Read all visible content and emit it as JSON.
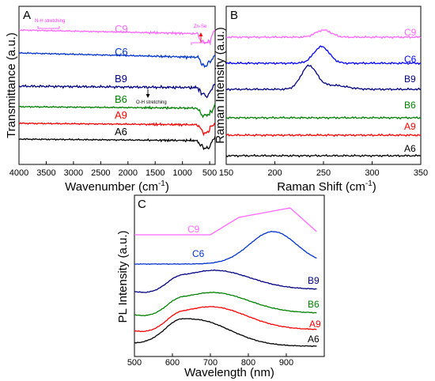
{
  "chart_data": [
    {
      "panel": "A",
      "type": "line",
      "xlabel": "Wavenumber (cm",
      "xlabel_sup": "-1",
      "xlabel_tail": ")",
      "ylabel": "Transmittance (a.u.)",
      "xlim": [
        4000,
        400
      ],
      "x_ticks": [
        4000,
        3500,
        3000,
        2500,
        2000,
        1500,
        1000,
        500
      ],
      "y_ticks": false,
      "annotations": [
        {
          "text": "N-H stretching",
          "x": 3450,
          "color": "#ff33ff"
        },
        {
          "text": "O-H stretching",
          "x": 1350,
          "color": "#000000"
        },
        {
          "text": "Zn-Se",
          "x": 520,
          "color": "#ff33ff"
        }
      ],
      "series": [
        {
          "name": "C9",
          "color": "#ff66ff",
          "level": 7.6
        },
        {
          "name": "C6",
          "color": "#0033cc",
          "level": 6.3
        },
        {
          "name": "B9",
          "color": "#000080",
          "level": 4.7
        },
        {
          "name": "B6",
          "color": "#008000",
          "level": 3.4
        },
        {
          "name": "A9",
          "color": "#ff0000",
          "level": 2.5
        },
        {
          "name": "A6",
          "color": "#000000",
          "level": 1.6
        }
      ]
    },
    {
      "panel": "B",
      "type": "line",
      "xlabel": "Raman Shift (cm",
      "xlabel_sup": "-1",
      "xlabel_tail": ")",
      "ylabel": "Raman Intensity (a.u.)",
      "xlim": [
        150,
        350
      ],
      "x_ticks": [
        150,
        200,
        250,
        300,
        350
      ],
      "y_ticks": false,
      "series": [
        {
          "name": "C9",
          "color": "#ff66ff",
          "peak_x": 250
        },
        {
          "name": "C6",
          "color": "#0000ff",
          "peak_x": 248
        },
        {
          "name": "B9",
          "color": "#000080",
          "peak_x": 235
        },
        {
          "name": "B6",
          "color": "#008000"
        },
        {
          "name": "A9",
          "color": "#ff0000"
        },
        {
          "name": "A6",
          "color": "#000000"
        }
      ]
    },
    {
      "panel": "C",
      "type": "line",
      "xlabel": "Wavelength (nm)",
      "ylabel": "PL Intensity (a.u.)",
      "xlim": [
        500,
        1000
      ],
      "x_ticks": [
        500,
        600,
        700,
        800,
        900
      ],
      "y_ticks": false,
      "series": [
        {
          "name": "C9",
          "color": "#ff66ff",
          "peak_x": 910
        },
        {
          "name": "C6",
          "color": "#0033cc",
          "peak_x": 865
        },
        {
          "name": "B9",
          "color": "#000080",
          "peak_x": 710
        },
        {
          "name": "B6",
          "color": "#008000",
          "peak_x": 705
        },
        {
          "name": "A9",
          "color": "#ff0000",
          "peak_x": 700
        },
        {
          "name": "A6",
          "color": "#000000",
          "peak_x": 655
        }
      ]
    }
  ]
}
